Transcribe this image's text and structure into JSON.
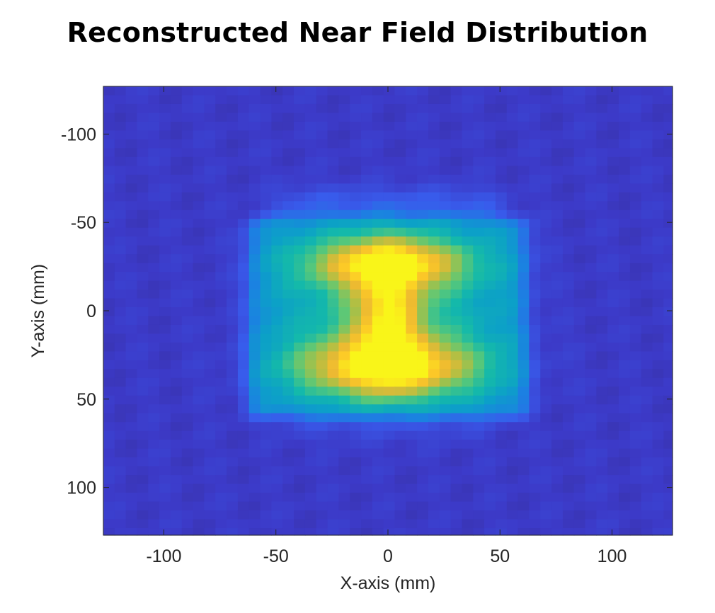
{
  "chart_data": {
    "type": "heatmap",
    "title": "Reconstructed Near Field Distribution",
    "xlabel": "X-axis (mm)",
    "ylabel": "Y-axis (mm)",
    "xlim": [
      -127,
      127
    ],
    "ylim": [
      -127,
      127
    ],
    "y_direction": "reversed",
    "x_ticks": [
      -100,
      -50,
      0,
      50,
      100
    ],
    "y_ticks": [
      -100,
      -50,
      0,
      50,
      100
    ],
    "x_tick_labels": [
      "-100",
      "-50",
      "0",
      "50",
      "100"
    ],
    "y_tick_labels": [
      "-100",
      "-50",
      "0",
      "50",
      "100"
    ],
    "colormap": "parula",
    "grid": false,
    "colorbar": false,
    "pixel_size_mm": 5,
    "features": [
      {
        "name": "square aperture",
        "x_range_mm": [
          -62,
          62
        ],
        "y_range_mm": [
          -52,
          60
        ],
        "level": 0.38
      },
      {
        "name": "outer halo",
        "x_range_mm": [
          -50,
          50
        ],
        "y_range_mm": [
          -65,
          -50
        ],
        "level": 0.22
      },
      {
        "name": "top lobe",
        "center_mm": [
          0,
          -27
        ],
        "level": 0.95
      },
      {
        "name": "bottom lobe",
        "center_mm": [
          0,
          32
        ],
        "level": 1.0
      },
      {
        "name": "central bridge",
        "center_mm": [
          0,
          3
        ],
        "level": 0.8
      }
    ]
  }
}
